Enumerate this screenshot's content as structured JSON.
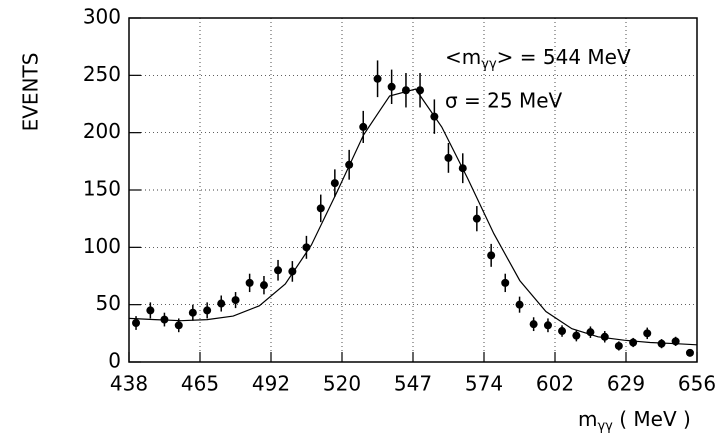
{
  "chart_data": {
    "type": "scatter",
    "ylabel": "EVENTS",
    "xlabel": {
      "main": "m",
      "sub": "γγ",
      "rest": " ( MeV )"
    },
    "annotations": [
      {
        "main": "<m",
        "sub": "γγ",
        "rest": "> = 544 MeV"
      },
      {
        "main": "σ = 25 MeV"
      }
    ],
    "xlim": [
      438,
      656
    ],
    "xticks": [
      438,
      {
        "value": 465.25,
        "label": "465"
      },
      {
        "value": 492.5,
        "label": "492"
      },
      {
        "value": 519.75,
        "label": "520"
      },
      547,
      {
        "value": 574.25,
        "label": "574"
      },
      {
        "value": 601.5,
        "label": "602"
      },
      {
        "value": 628.75,
        "label": "629"
      },
      656
    ],
    "ylim": [
      0,
      300
    ],
    "yticks": [
      0,
      50,
      100,
      150,
      200,
      250,
      300
    ],
    "grid": true,
    "series": [
      {
        "color": "#000000",
        "x": [
          440.7,
          446.2,
          451.6,
          457.1,
          462.5,
          468.0,
          473.4,
          478.9,
          484.3,
          489.8,
          495.2,
          500.7,
          506.1,
          511.6,
          517.0,
          522.5,
          527.9,
          533.4,
          538.8,
          544.3,
          549.7,
          555.2,
          560.6,
          566.1,
          571.5,
          577.0,
          582.4,
          587.9,
          593.3,
          598.8,
          604.2,
          609.7,
          615.1,
          620.6,
          626.0,
          631.5,
          636.9,
          642.4,
          647.8,
          653.3
        ],
        "values": [
          34,
          45,
          37,
          32,
          43,
          45,
          51,
          54,
          69,
          67,
          80,
          79,
          100,
          134,
          156,
          172,
          205,
          247,
          240,
          237,
          237,
          214,
          178,
          169,
          125,
          93,
          69,
          50,
          33,
          32,
          27,
          23,
          26,
          22,
          14,
          17,
          25,
          16,
          18,
          8
        ],
        "errors": [
          6,
          7,
          6,
          6,
          7,
          7,
          7,
          7,
          8,
          8,
          9,
          9,
          10,
          12,
          12,
          13,
          14,
          16,
          15,
          15,
          15,
          15,
          13,
          13,
          11,
          10,
          8,
          7,
          6,
          6,
          5,
          5,
          5,
          5,
          4,
          4,
          5,
          4,
          4,
          3
        ]
      },
      {
        "color": "#000000",
        "x": [
          438,
          448,
          458,
          468,
          478,
          488,
          498,
          508,
          518,
          528,
          538,
          548,
          558,
          568,
          578,
          588,
          598,
          608,
          618,
          628,
          638,
          648,
          656
        ],
        "values": [
          38,
          37,
          36,
          37,
          40,
          49,
          68,
          102,
          149,
          198,
          232,
          238,
          205,
          160,
          112,
          71,
          44,
          29,
          22,
          19,
          17,
          16,
          15
        ]
      }
    ]
  }
}
